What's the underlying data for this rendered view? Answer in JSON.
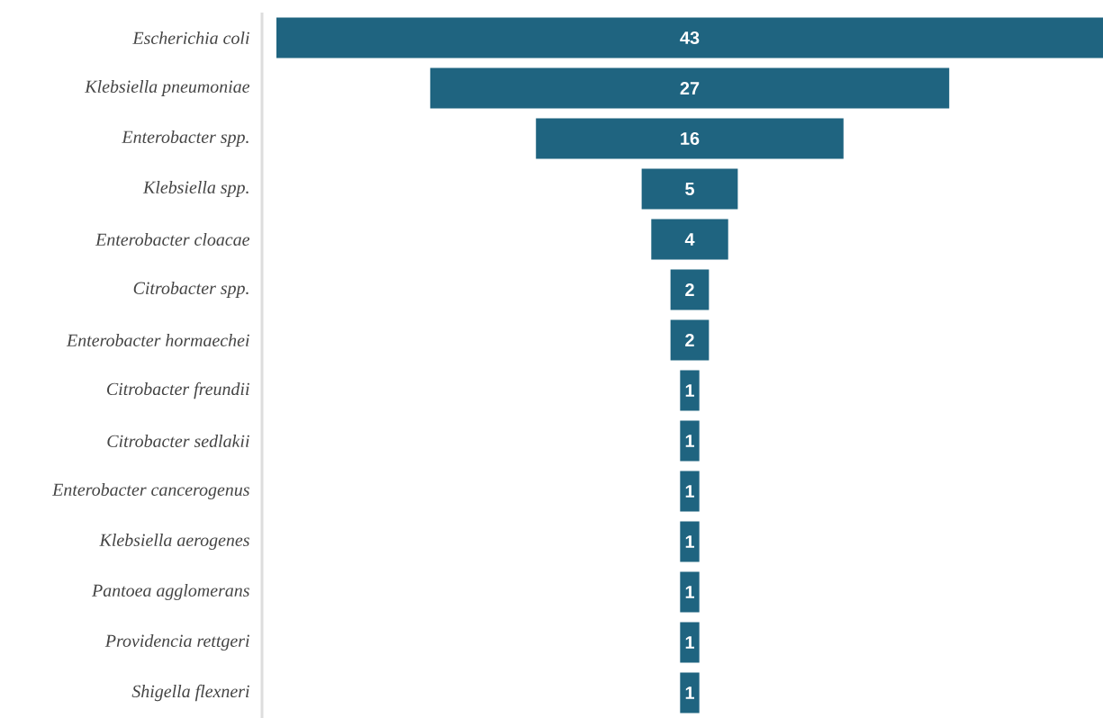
{
  "chart_data": {
    "type": "other",
    "categories": [
      "Escherichia coli",
      "Klebsiella pneumoniae",
      "Enterobacter spp.",
      "Klebsiella spp.",
      "Enterobacter cloacae",
      "Citrobacter spp.",
      "Enterobacter hormaechei",
      "Citrobacter freundii",
      "Citrobacter sedlakii",
      "Enterobacter cancerogenus",
      "Klebsiella aerogenes",
      "Pantoea agglomerans",
      "Providencia rettgeri",
      "Shigella flexneri"
    ],
    "values": [
      43,
      27,
      16,
      5,
      4,
      2,
      2,
      1,
      1,
      1,
      1,
      1,
      1,
      1
    ],
    "color": "#1f6480",
    "data_labels": true
  }
}
